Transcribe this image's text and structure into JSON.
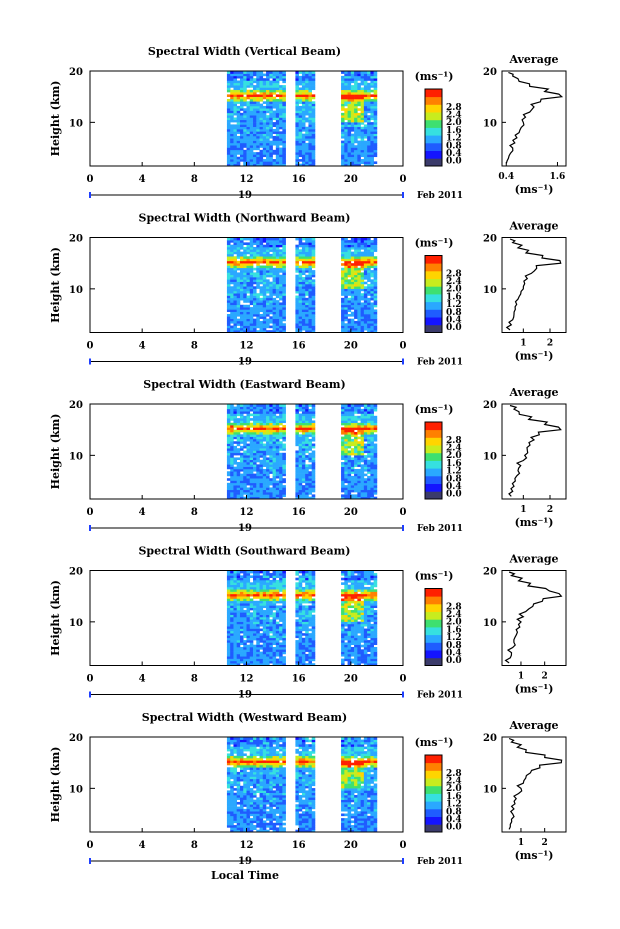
{
  "figure": {
    "xlabel": "Local Time",
    "date_label": "Feb 2011",
    "colorbar_unit": "(ms⁻¹)",
    "colorbar_ticks": [
      "0.0",
      "0.4",
      "0.8",
      "1.2",
      "1.6",
      "2.0",
      "2.4",
      "2.8"
    ],
    "colorbar_colors": [
      "#3b3b6b",
      "#1414ff",
      "#1f5cff",
      "#2aa8ff",
      "#36e0e0",
      "#3ee070",
      "#c8ec1e",
      "#ffd400",
      "#ff8000",
      "#ff2000"
    ],
    "day_label": "19",
    "avg_title": "Average",
    "avg_xlabel": "(ms⁻¹)"
  },
  "chart_data": [
    {
      "type": "heatmap",
      "title": "Spectral Width (Vertical Beam)",
      "ylabel": "Height (km)",
      "x_ticks": [
        "0",
        "4",
        "8",
        "12",
        "16",
        "20",
        "0"
      ],
      "y_ticks": [
        "20",
        "10"
      ],
      "xlim": [
        0,
        24
      ],
      "ylim": [
        1.5,
        20
      ],
      "data_gaps_hours": [
        [
          0,
          10.5
        ],
        [
          14.9,
          15.7
        ],
        [
          17.2,
          19.2
        ],
        [
          21.8,
          24
        ]
      ],
      "peak_height_km": 15,
      "avg_profile": {
        "title": "Average",
        "xticks": [
          "0.4",
          "1.6"
        ],
        "xlim": [
          0.3,
          1.8
        ],
        "heights": [
          2,
          3,
          4,
          5,
          6,
          7,
          8,
          9,
          10,
          11,
          12,
          13,
          14,
          15,
          16,
          17,
          18,
          19,
          19.7
        ],
        "values": [
          0.4,
          0.45,
          0.5,
          0.55,
          0.6,
          0.65,
          0.7,
          0.75,
          0.8,
          0.85,
          0.95,
          1.05,
          1.2,
          1.7,
          1.3,
          0.95,
          0.7,
          0.55,
          0.45
        ]
      }
    },
    {
      "type": "heatmap",
      "title": "Spectral Width (Northward Beam)",
      "ylabel": "Height (km)",
      "x_ticks": [
        "0",
        "4",
        "8",
        "12",
        "16",
        "20",
        "0"
      ],
      "y_ticks": [
        "20",
        "10"
      ],
      "xlim": [
        0,
        24
      ],
      "ylim": [
        1.5,
        20
      ],
      "data_gaps_hours": [
        [
          0,
          10.5
        ],
        [
          14.9,
          15.7
        ],
        [
          17.2,
          19.2
        ],
        [
          21.8,
          24
        ]
      ],
      "peak_height_km": 15,
      "avg_profile": {
        "title": "Average",
        "xticks": [
          "1",
          "2"
        ],
        "xlim": [
          0.2,
          2.6
        ],
        "heights": [
          2,
          3,
          4,
          5,
          6,
          7,
          8,
          9,
          10,
          11,
          12,
          13,
          14,
          15,
          16,
          17,
          18,
          19,
          19.7
        ],
        "values": [
          0.5,
          0.55,
          0.6,
          0.65,
          0.7,
          0.75,
          0.8,
          0.9,
          1.0,
          1.05,
          1.15,
          1.3,
          1.5,
          2.4,
          1.7,
          1.1,
          0.8,
          0.6,
          0.5
        ]
      }
    },
    {
      "type": "heatmap",
      "title": "Spectral Width (Eastward Beam)",
      "ylabel": "Height (km)",
      "x_ticks": [
        "0",
        "4",
        "8",
        "12",
        "16",
        "20",
        "0"
      ],
      "y_ticks": [
        "20",
        "10"
      ],
      "xlim": [
        0,
        24
      ],
      "ylim": [
        1.5,
        20
      ],
      "data_gaps_hours": [
        [
          0,
          10.5
        ],
        [
          14.9,
          15.7
        ],
        [
          17.2,
          19.2
        ],
        [
          21.8,
          24
        ]
      ],
      "peak_height_km": 15,
      "avg_profile": {
        "title": "Average",
        "xticks": [
          "1",
          "2"
        ],
        "xlim": [
          0.2,
          2.6
        ],
        "heights": [
          2,
          3,
          4,
          5,
          6,
          7,
          8,
          9,
          10,
          11,
          12,
          13,
          14,
          15,
          16,
          17,
          18,
          19,
          19.7
        ],
        "values": [
          0.55,
          0.6,
          0.65,
          0.7,
          0.75,
          0.8,
          0.9,
          1.0,
          1.05,
          1.15,
          1.25,
          1.4,
          1.6,
          2.4,
          1.8,
          1.2,
          0.85,
          0.65,
          0.5
        ]
      }
    },
    {
      "type": "heatmap",
      "title": "Spectral Width (Southward Beam)",
      "ylabel": "Height (km)",
      "x_ticks": [
        "0",
        "4",
        "8",
        "12",
        "16",
        "20",
        "0"
      ],
      "y_ticks": [
        "20",
        "10"
      ],
      "xlim": [
        0,
        24
      ],
      "ylim": [
        1.5,
        20
      ],
      "data_gaps_hours": [
        [
          0,
          10.5
        ],
        [
          14.9,
          15.7
        ],
        [
          17.2,
          19.2
        ],
        [
          21.8,
          24
        ]
      ],
      "peak_height_km": 15,
      "avg_profile": {
        "title": "Average",
        "xticks": [
          "1",
          "2"
        ],
        "xlim": [
          0.2,
          2.9
        ],
        "heights": [
          2,
          3,
          4,
          5,
          6,
          7,
          8,
          9,
          10,
          11,
          12,
          13,
          14,
          15,
          16,
          17,
          18,
          19,
          19.7
        ],
        "values": [
          0.5,
          0.55,
          0.6,
          0.65,
          0.7,
          0.75,
          0.85,
          0.95,
          1.0,
          1.1,
          1.2,
          1.5,
          1.9,
          2.7,
          2.2,
          1.3,
          0.9,
          0.6,
          0.5
        ]
      }
    },
    {
      "type": "heatmap",
      "title": "Spectral Width (Westward Beam)",
      "ylabel": "Height (km)",
      "x_ticks": [
        "0",
        "4",
        "8",
        "12",
        "16",
        "20",
        "0"
      ],
      "y_ticks": [
        "20",
        "10"
      ],
      "xlim": [
        0,
        24
      ],
      "ylim": [
        1.5,
        20
      ],
      "data_gaps_hours": [
        [
          0,
          10.5
        ],
        [
          14.9,
          15.7
        ],
        [
          17.2,
          19.2
        ],
        [
          21.8,
          24
        ]
      ],
      "peak_height_km": 15,
      "avg_profile": {
        "title": "Average",
        "xticks": [
          "1",
          "2"
        ],
        "xlim": [
          0.2,
          2.9
        ],
        "heights": [
          2,
          3,
          4,
          5,
          6,
          7,
          8,
          9,
          10,
          11,
          12,
          13,
          14,
          15,
          16,
          17,
          18,
          19,
          19.7
        ],
        "values": [
          0.5,
          0.55,
          0.6,
          0.65,
          0.7,
          0.75,
          0.8,
          0.9,
          1.0,
          1.1,
          1.2,
          1.4,
          1.8,
          2.7,
          2.0,
          1.2,
          0.85,
          0.6,
          0.5
        ]
      }
    }
  ]
}
